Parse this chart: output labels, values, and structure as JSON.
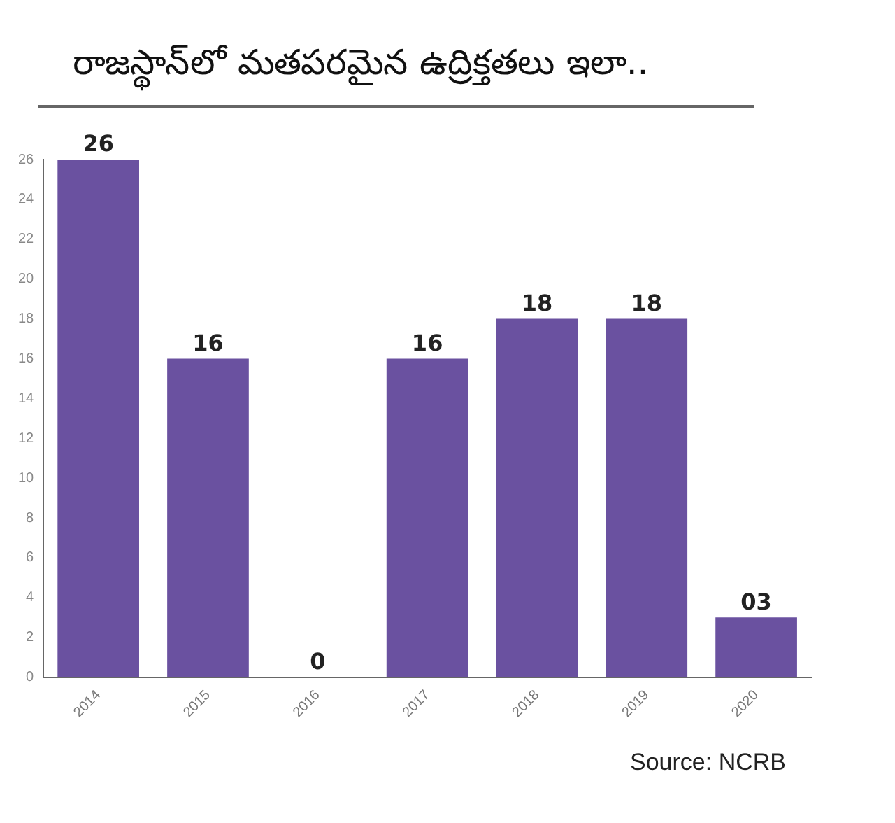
{
  "chart_data": {
    "type": "bar",
    "title": "రాజస్థాన్‌లో మతపరమైన ఉద్రిక్తతలు ఇలా..",
    "categories": [
      "2014",
      "2015",
      "2016",
      "2017",
      "2018",
      "2019",
      "2020"
    ],
    "values": [
      26,
      16,
      0,
      16,
      18,
      18,
      3
    ],
    "value_labels": [
      "26",
      "16",
      "0",
      "16",
      "18",
      "18",
      "03"
    ],
    "color": "#6a51a0",
    "ylim": [
      0,
      26
    ],
    "yticks": [
      0,
      2,
      4,
      6,
      8,
      10,
      12,
      14,
      16,
      18,
      20,
      22,
      24,
      26
    ],
    "grid": false,
    "legend": false,
    "annotations": [
      "Source: NCRB"
    ]
  }
}
